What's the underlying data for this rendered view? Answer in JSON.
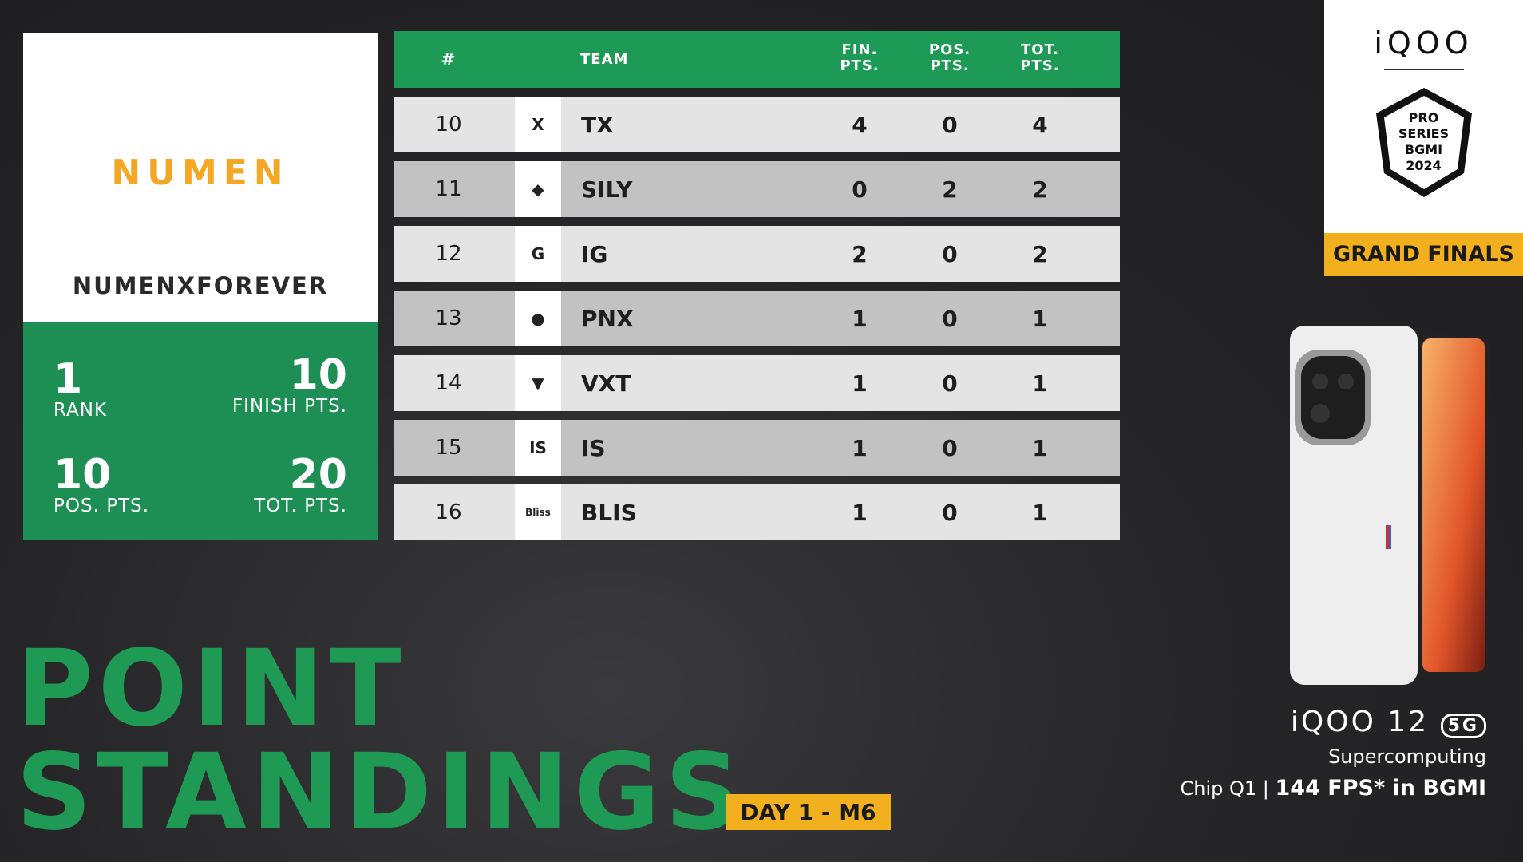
{
  "featured": {
    "logo_text": "NUMEN",
    "team_name": "NUMENXFOREVER",
    "rank": "1",
    "rank_label": "RANK",
    "finish_pts": "10",
    "finish_label": "FINISH PTS.",
    "pos_pts": "10",
    "pos_label": "POS. PTS.",
    "tot_pts": "20",
    "tot_label": "TOT. PTS."
  },
  "table": {
    "headers": {
      "rank": "#",
      "team": "TEAM",
      "fin": "FIN. PTS.",
      "pos": "POS. PTS.",
      "tot": "TOT. PTS."
    },
    "rows": [
      {
        "rank": "10",
        "team": "TX",
        "fin": "4",
        "pos": "0",
        "tot": "4",
        "logo": "X"
      },
      {
        "rank": "11",
        "team": "SILY",
        "fin": "0",
        "pos": "2",
        "tot": "2",
        "logo": "◆"
      },
      {
        "rank": "12",
        "team": "IG",
        "fin": "2",
        "pos": "0",
        "tot": "2",
        "logo": "G"
      },
      {
        "rank": "13",
        "team": "PNX",
        "fin": "1",
        "pos": "0",
        "tot": "1",
        "logo": "●"
      },
      {
        "rank": "14",
        "team": "VXT",
        "fin": "1",
        "pos": "0",
        "tot": "1",
        "logo": "▼"
      },
      {
        "rank": "15",
        "team": "IS",
        "fin": "1",
        "pos": "0",
        "tot": "1",
        "logo": "IS"
      },
      {
        "rank": "16",
        "team": "BLIS",
        "fin": "1",
        "pos": "0",
        "tot": "1",
        "logo": "Bliss"
      }
    ]
  },
  "sponsor": {
    "brand": "iQOO",
    "event_logo_text": "PRO SERIES BGMI 2024",
    "stage": "GRAND FINALS"
  },
  "title": {
    "line1": "POINT",
    "line2": "STANDINGS",
    "badge": "DAY 1 - M6"
  },
  "ad": {
    "model": "iQOO 12",
    "network": "5G",
    "line1": "Supercomputing",
    "line2a": "Chip Q1 | ",
    "line2b": "144 FPS* in BGMI"
  },
  "colors": {
    "green": "#1d9a55",
    "yellow": "#f2b01e"
  }
}
